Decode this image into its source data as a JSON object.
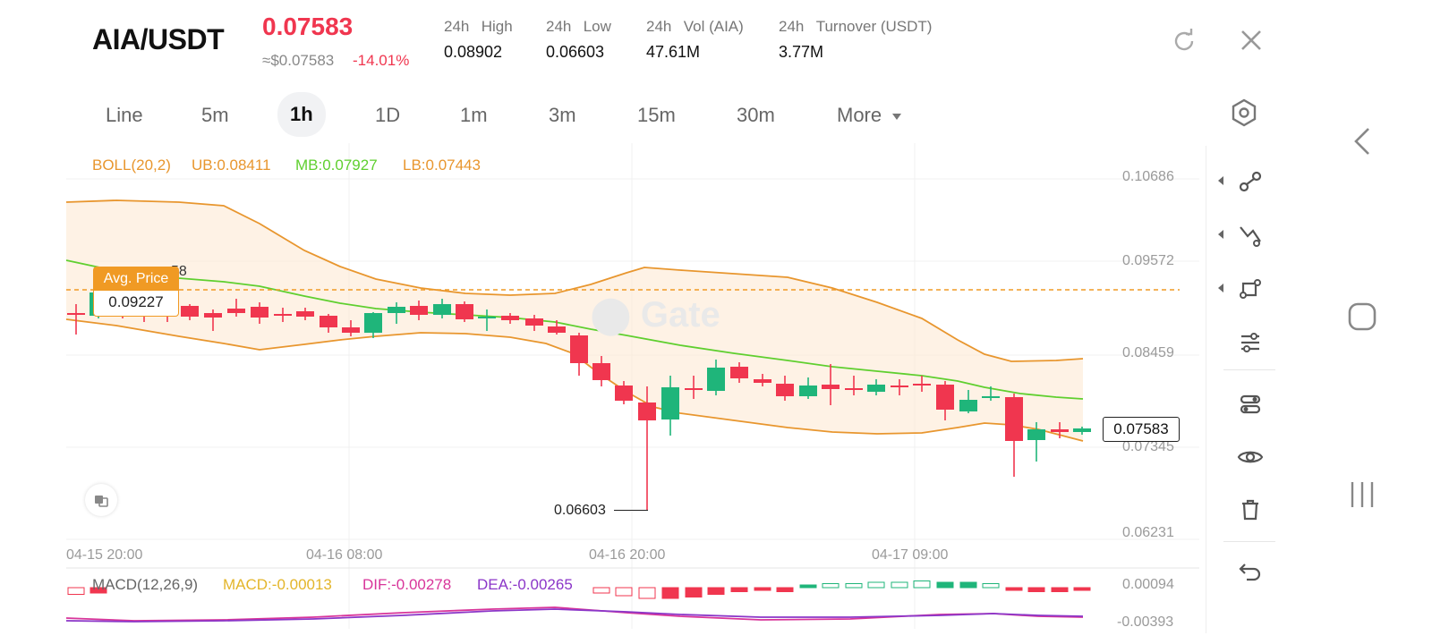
{
  "header": {
    "pair": "AIA/USDT",
    "last_price": "0.07583",
    "approx_usd": "≈$0.07583",
    "change_pct": "-14.01%",
    "stats": [
      {
        "label_a": "24h",
        "label_b": "High",
        "value": "0.08902"
      },
      {
        "label_a": "24h",
        "label_b": "Low",
        "value": "0.06603"
      },
      {
        "label_a": "24h",
        "label_b": "Vol (AIA)",
        "value": "47.61M"
      },
      {
        "label_a": "24h",
        "label_b": "Turnover (USDT)",
        "value": "3.77M"
      }
    ]
  },
  "tabs": [
    "Line",
    "5m",
    "1h",
    "1D",
    "1m",
    "3m",
    "15m",
    "30m",
    "More"
  ],
  "active_tab": "1h",
  "indicator": {
    "boll": "BOLL(20,2)",
    "ub": "UB:0.08411",
    "mb": "MB:0.07927",
    "lb": "LB:0.07443"
  },
  "price_axis": [
    "0.10686",
    "0.09572",
    "0.08459",
    "0.07345",
    "0.06231"
  ],
  "current_price_tag": "0.07583",
  "avg_price": {
    "label": "Avg. Price",
    "value": "0.09227",
    "hidden_suffix": "58"
  },
  "low_marker": "0.06603",
  "time_axis": [
    "04-15 20:00",
    "04-16 08:00",
    "04-16 20:00",
    "04-17 09:00"
  ],
  "macd": {
    "title": "MACD(12,26,9)",
    "macd": "MACD:-0.00013",
    "dif": "DIF:-0.00278",
    "dea": "DEA:-0.00265",
    "axis": [
      "0.00094",
      "-0.00393"
    ]
  },
  "colors": {
    "up": "#1fb57a",
    "down": "#f0364f",
    "boll_band": "#e8962e",
    "mid": "#5fcf2f",
    "accent": "#f0364f",
    "avg_tag": "#f09a24",
    "dif_line": "#d8359a",
    "dea_line": "#8b36c8"
  },
  "toolbar_icons": [
    "trendline-icon",
    "crosshair-line-icon",
    "shape-icon",
    "sliders-icon",
    "indicator-icon",
    "eye-icon",
    "trash-icon",
    "undo-icon"
  ],
  "header_icons": [
    "refresh-icon",
    "close-icon"
  ],
  "system_nav": [
    "back-icon",
    "home-icon",
    "recents-icon"
  ]
}
